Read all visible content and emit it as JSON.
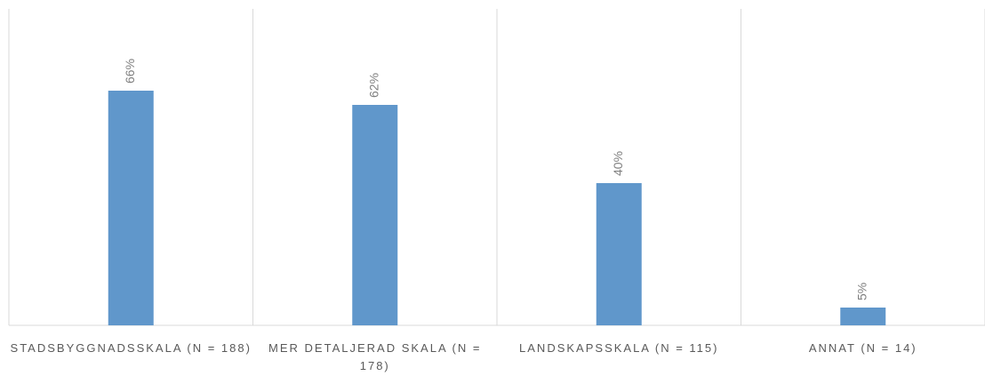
{
  "chart_data": {
    "type": "bar",
    "categories": [
      "STADSBYGGNADSSKALA (N = 188)",
      "MER DETALJERAD SKALA (N = 178)",
      "LANDSKAPSSKALA (N = 115)",
      "ANNAT (N = 14)"
    ],
    "values": [
      66,
      62,
      40,
      5
    ],
    "value_labels": [
      "66%",
      "62%",
      "40%",
      "5%"
    ],
    "color": "#6097cb",
    "ylim": [
      0,
      89
    ]
  }
}
